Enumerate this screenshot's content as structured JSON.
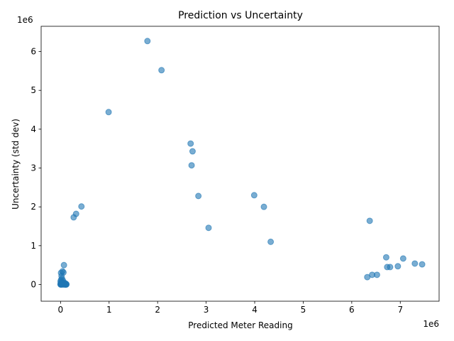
{
  "chart_data": {
    "type": "scatter",
    "title": "Prediction vs Uncertainty",
    "xlabel": "Predicted Meter Reading",
    "ylabel": "Uncertainty (std dev)",
    "x_offset_label": "1e6",
    "y_offset_label": "1e6",
    "xlim": [
      -400000,
      7800000
    ],
    "ylim": [
      -430000,
      6650000
    ],
    "xticks": [
      0,
      1000000,
      2000000,
      3000000,
      4000000,
      5000000,
      6000000,
      7000000
    ],
    "xtick_labels": [
      "0",
      "1",
      "2",
      "3",
      "4",
      "5",
      "6",
      "7"
    ],
    "yticks": [
      0,
      1000000,
      2000000,
      3000000,
      4000000,
      5000000,
      6000000
    ],
    "ytick_labels": [
      "0",
      "1",
      "2",
      "3",
      "4",
      "5",
      "6"
    ],
    "grid": false,
    "point_color": "#1f77b4",
    "points": [
      [
        1790000,
        6270000
      ],
      [
        2080000,
        5520000
      ],
      [
        990000,
        4440000
      ],
      [
        2680000,
        3630000
      ],
      [
        2720000,
        3430000
      ],
      [
        2700000,
        3070000
      ],
      [
        2840000,
        2280000
      ],
      [
        3990000,
        2300000
      ],
      [
        4190000,
        2000000
      ],
      [
        430000,
        2010000
      ],
      [
        320000,
        1820000
      ],
      [
        270000,
        1730000
      ],
      [
        3050000,
        1460000
      ],
      [
        6370000,
        1640000
      ],
      [
        4330000,
        1100000
      ],
      [
        6710000,
        700000
      ],
      [
        7060000,
        670000
      ],
      [
        7300000,
        540000
      ],
      [
        7450000,
        520000
      ],
      [
        6730000,
        450000
      ],
      [
        6790000,
        450000
      ],
      [
        6950000,
        470000
      ],
      [
        6420000,
        250000
      ],
      [
        6520000,
        250000
      ],
      [
        6320000,
        190000
      ],
      [
        70000,
        500000
      ],
      [
        10000,
        300000
      ],
      [
        40000,
        340000
      ],
      [
        60000,
        310000
      ],
      [
        20000,
        220000
      ],
      [
        30000,
        150000
      ],
      [
        10000,
        120000
      ],
      [
        50000,
        100000
      ],
      [
        0,
        80000
      ],
      [
        20000,
        60000
      ],
      [
        40000,
        50000
      ],
      [
        80000,
        40000
      ],
      [
        100000,
        30000
      ],
      [
        120000,
        10000
      ],
      [
        0,
        10000
      ],
      [
        10000,
        0
      ],
      [
        30000,
        0
      ],
      [
        60000,
        0
      ],
      [
        90000,
        0
      ],
      [
        110000,
        0
      ],
      [
        5000,
        30000
      ],
      [
        15000,
        20000
      ],
      [
        25000,
        10000
      ],
      [
        45000,
        20000
      ],
      [
        70000,
        10000
      ],
      [
        0,
        0
      ],
      [
        100000,
        0
      ],
      [
        120000,
        0
      ]
    ]
  }
}
